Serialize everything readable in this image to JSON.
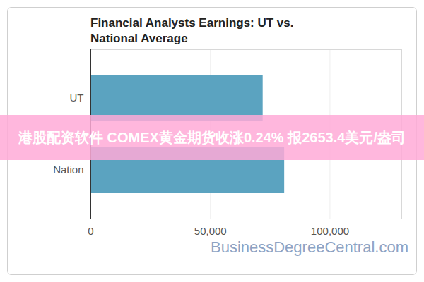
{
  "chart_data": {
    "type": "bar",
    "title": "Financial Analysts Earnings: UT vs. National Average",
    "orientation": "horizontal",
    "categories": [
      "UT",
      "Nation"
    ],
    "values": [
      72000,
      81000
    ],
    "color": "#5ba3c0",
    "xlim": [
      0,
      130000
    ],
    "xticks": [
      0,
      {
        "value": 50000,
        "label": "50,000"
      },
      {
        "value": 100000,
        "label": "100,000"
      }
    ],
    "grid": true,
    "annotations": [
      "港股配资软件 COMEX黄金期货收涨0.24% 报2653.4美元/盎司",
      "BusinessDegreeCentral.com"
    ]
  }
}
